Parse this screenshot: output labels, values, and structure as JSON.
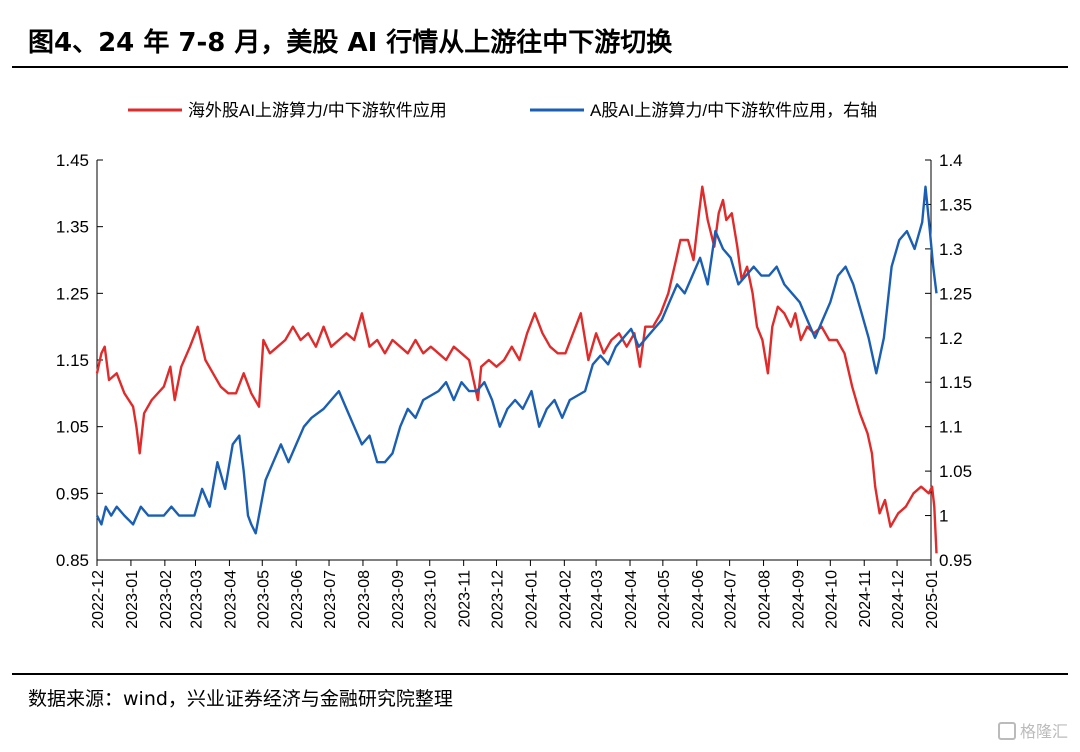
{
  "figure": {
    "title": "图4、24 年 7-8 月，美股 AI 行情从上游往中下游切换",
    "source": "数据来源：wind，兴业证券经济与金融研究院整理",
    "watermark": "格隆汇"
  },
  "chart_data": {
    "type": "line",
    "title": "",
    "xlabel": "",
    "ylabel": "",
    "legend_position": "top",
    "grid": false,
    "x_ticks": [
      "2022-12",
      "2023-01",
      "2023-02",
      "2023-03",
      "2023-04",
      "2023-05",
      "2023-06",
      "2023-07",
      "2023-08",
      "2023-09",
      "2023-10",
      "2023-11",
      "2023-12",
      "2024-01",
      "2024-02",
      "2024-03",
      "2024-04",
      "2024-05",
      "2024-06",
      "2024-07",
      "2024-08",
      "2024-09",
      "2024-10",
      "2024-11",
      "2024-12",
      "2025-01"
    ],
    "y_left": {
      "ticks": [
        "1.45",
        "1.35",
        "1.25",
        "1.15",
        "1.05",
        "0.95",
        "0.85"
      ],
      "min": 0.85,
      "max": 1.45
    },
    "y_right": {
      "ticks": [
        "1.4",
        "1.35",
        "1.3",
        "1.25",
        "1.2",
        "1.15",
        "1.1",
        "1.05",
        "1",
        "0.95"
      ],
      "min": 0.95,
      "max": 1.4
    },
    "series": [
      {
        "name": "海外股AI上游算力/中下游软件应用",
        "axis": "left",
        "color": "#e02b2b",
        "points": [
          [
            "2022-12-01",
            1.13
          ],
          [
            "2022-12-05",
            1.16
          ],
          [
            "2022-12-08",
            1.17
          ],
          [
            "2022-12-12",
            1.12
          ],
          [
            "2022-12-19",
            1.13
          ],
          [
            "2022-12-26",
            1.1
          ],
          [
            "2023-01-03",
            1.08
          ],
          [
            "2023-01-06",
            1.05
          ],
          [
            "2023-01-09",
            1.01
          ],
          [
            "2023-01-13",
            1.07
          ],
          [
            "2023-01-20",
            1.09
          ],
          [
            "2023-01-31",
            1.11
          ],
          [
            "2023-02-06",
            1.14
          ],
          [
            "2023-02-10",
            1.09
          ],
          [
            "2023-02-16",
            1.14
          ],
          [
            "2023-02-24",
            1.17
          ],
          [
            "2023-03-03",
            1.2
          ],
          [
            "2023-03-10",
            1.15
          ],
          [
            "2023-03-17",
            1.13
          ],
          [
            "2023-03-24",
            1.11
          ],
          [
            "2023-03-31",
            1.1
          ],
          [
            "2023-04-07",
            1.1
          ],
          [
            "2023-04-14",
            1.13
          ],
          [
            "2023-04-21",
            1.1
          ],
          [
            "2023-04-28",
            1.08
          ],
          [
            "2023-05-02",
            1.18
          ],
          [
            "2023-05-08",
            1.16
          ],
          [
            "2023-05-15",
            1.17
          ],
          [
            "2023-05-22",
            1.18
          ],
          [
            "2023-05-29",
            1.2
          ],
          [
            "2023-06-05",
            1.18
          ],
          [
            "2023-06-12",
            1.19
          ],
          [
            "2023-06-19",
            1.17
          ],
          [
            "2023-06-26",
            1.2
          ],
          [
            "2023-07-03",
            1.17
          ],
          [
            "2023-07-10",
            1.18
          ],
          [
            "2023-07-17",
            1.19
          ],
          [
            "2023-07-24",
            1.18
          ],
          [
            "2023-07-31",
            1.22
          ],
          [
            "2023-08-07",
            1.17
          ],
          [
            "2023-08-14",
            1.18
          ],
          [
            "2023-08-21",
            1.16
          ],
          [
            "2023-08-28",
            1.18
          ],
          [
            "2023-09-04",
            1.17
          ],
          [
            "2023-09-11",
            1.16
          ],
          [
            "2023-09-18",
            1.18
          ],
          [
            "2023-09-25",
            1.16
          ],
          [
            "2023-10-02",
            1.17
          ],
          [
            "2023-10-09",
            1.16
          ],
          [
            "2023-10-16",
            1.15
          ],
          [
            "2023-10-23",
            1.17
          ],
          [
            "2023-10-30",
            1.16
          ],
          [
            "2023-11-06",
            1.15
          ],
          [
            "2023-11-10",
            1.12
          ],
          [
            "2023-11-14",
            1.09
          ],
          [
            "2023-11-17",
            1.14
          ],
          [
            "2023-11-24",
            1.15
          ],
          [
            "2023-12-01",
            1.14
          ],
          [
            "2023-12-08",
            1.15
          ],
          [
            "2023-12-15",
            1.17
          ],
          [
            "2023-12-22",
            1.15
          ],
          [
            "2023-12-29",
            1.19
          ],
          [
            "2024-01-05",
            1.22
          ],
          [
            "2024-01-12",
            1.19
          ],
          [
            "2024-01-19",
            1.17
          ],
          [
            "2024-01-26",
            1.16
          ],
          [
            "2024-02-02",
            1.16
          ],
          [
            "2024-02-09",
            1.19
          ],
          [
            "2024-02-16",
            1.22
          ],
          [
            "2024-02-23",
            1.15
          ],
          [
            "2024-03-01",
            1.19
          ],
          [
            "2024-03-08",
            1.16
          ],
          [
            "2024-03-15",
            1.18
          ],
          [
            "2024-03-22",
            1.19
          ],
          [
            "2024-03-29",
            1.17
          ],
          [
            "2024-04-05",
            1.19
          ],
          [
            "2024-04-10",
            1.14
          ],
          [
            "2024-04-15",
            1.2
          ],
          [
            "2024-04-22",
            1.2
          ],
          [
            "2024-04-29",
            1.22
          ],
          [
            "2024-05-06",
            1.25
          ],
          [
            "2024-05-13",
            1.3
          ],
          [
            "2024-05-17",
            1.33
          ],
          [
            "2024-05-24",
            1.33
          ],
          [
            "2024-05-29",
            1.3
          ],
          [
            "2024-06-03",
            1.37
          ],
          [
            "2024-06-06",
            1.41
          ],
          [
            "2024-06-11",
            1.36
          ],
          [
            "2024-06-17",
            1.32
          ],
          [
            "2024-06-21",
            1.37
          ],
          [
            "2024-06-25",
            1.39
          ],
          [
            "2024-06-28",
            1.36
          ],
          [
            "2024-07-03",
            1.37
          ],
          [
            "2024-07-08",
            1.32
          ],
          [
            "2024-07-12",
            1.27
          ],
          [
            "2024-07-17",
            1.29
          ],
          [
            "2024-07-22",
            1.25
          ],
          [
            "2024-07-26",
            1.2
          ],
          [
            "2024-07-31",
            1.18
          ],
          [
            "2024-08-05",
            1.13
          ],
          [
            "2024-08-09",
            1.2
          ],
          [
            "2024-08-14",
            1.23
          ],
          [
            "2024-08-20",
            1.22
          ],
          [
            "2024-08-26",
            1.2
          ],
          [
            "2024-08-30",
            1.22
          ],
          [
            "2024-09-04",
            1.18
          ],
          [
            "2024-09-10",
            1.2
          ],
          [
            "2024-09-16",
            1.19
          ],
          [
            "2024-09-23",
            1.2
          ],
          [
            "2024-09-30",
            1.18
          ],
          [
            "2024-10-07",
            1.18
          ],
          [
            "2024-10-14",
            1.16
          ],
          [
            "2024-10-21",
            1.11
          ],
          [
            "2024-10-28",
            1.07
          ],
          [
            "2024-11-04",
            1.04
          ],
          [
            "2024-11-08",
            1.01
          ],
          [
            "2024-11-11",
            0.96
          ],
          [
            "2024-11-15",
            0.92
          ],
          [
            "2024-11-20",
            0.94
          ],
          [
            "2024-11-25",
            0.9
          ],
          [
            "2024-12-02",
            0.92
          ],
          [
            "2024-12-09",
            0.93
          ],
          [
            "2024-12-16",
            0.95
          ],
          [
            "2024-12-23",
            0.96
          ],
          [
            "2024-12-30",
            0.95
          ],
          [
            "2025-01-02",
            0.96
          ],
          [
            "2025-01-04",
            0.93
          ],
          [
            "2025-01-06",
            0.86
          ]
        ]
      },
      {
        "name": "A股AI上游算力/中下游软件应用，右轴",
        "axis": "right",
        "color": "#1a5fb4",
        "points": [
          [
            "2022-12-01",
            1.0
          ],
          [
            "2022-12-05",
            0.99
          ],
          [
            "2022-12-09",
            1.01
          ],
          [
            "2022-12-14",
            1.0
          ],
          [
            "2022-12-19",
            1.01
          ],
          [
            "2022-12-26",
            1.0
          ],
          [
            "2023-01-03",
            0.99
          ],
          [
            "2023-01-10",
            1.01
          ],
          [
            "2023-01-17",
            1.0
          ],
          [
            "2023-01-31",
            1.0
          ],
          [
            "2023-02-07",
            1.01
          ],
          [
            "2023-02-14",
            1.0
          ],
          [
            "2023-02-21",
            1.0
          ],
          [
            "2023-02-28",
            1.0
          ],
          [
            "2023-03-07",
            1.03
          ],
          [
            "2023-03-14",
            1.01
          ],
          [
            "2023-03-21",
            1.06
          ],
          [
            "2023-03-28",
            1.03
          ],
          [
            "2023-04-04",
            1.08
          ],
          [
            "2023-04-10",
            1.09
          ],
          [
            "2023-04-14",
            1.05
          ],
          [
            "2023-04-18",
            1.0
          ],
          [
            "2023-04-21",
            0.99
          ],
          [
            "2023-04-25",
            0.98
          ],
          [
            "2023-05-04",
            1.04
          ],
          [
            "2023-05-11",
            1.06
          ],
          [
            "2023-05-18",
            1.08
          ],
          [
            "2023-05-25",
            1.06
          ],
          [
            "2023-06-01",
            1.08
          ],
          [
            "2023-06-08",
            1.1
          ],
          [
            "2023-06-15",
            1.11
          ],
          [
            "2023-06-26",
            1.12
          ],
          [
            "2023-07-03",
            1.13
          ],
          [
            "2023-07-10",
            1.14
          ],
          [
            "2023-07-17",
            1.12
          ],
          [
            "2023-07-24",
            1.1
          ],
          [
            "2023-07-31",
            1.08
          ],
          [
            "2023-08-07",
            1.09
          ],
          [
            "2023-08-14",
            1.06
          ],
          [
            "2023-08-21",
            1.06
          ],
          [
            "2023-08-28",
            1.07
          ],
          [
            "2023-09-04",
            1.1
          ],
          [
            "2023-09-11",
            1.12
          ],
          [
            "2023-09-18",
            1.11
          ],
          [
            "2023-09-25",
            1.13
          ],
          [
            "2023-10-09",
            1.14
          ],
          [
            "2023-10-16",
            1.15
          ],
          [
            "2023-10-23",
            1.13
          ],
          [
            "2023-10-30",
            1.15
          ],
          [
            "2023-11-06",
            1.14
          ],
          [
            "2023-11-13",
            1.14
          ],
          [
            "2023-11-20",
            1.15
          ],
          [
            "2023-11-27",
            1.13
          ],
          [
            "2023-12-04",
            1.1
          ],
          [
            "2023-12-11",
            1.12
          ],
          [
            "2023-12-18",
            1.13
          ],
          [
            "2023-12-25",
            1.12
          ],
          [
            "2024-01-02",
            1.14
          ],
          [
            "2024-01-09",
            1.1
          ],
          [
            "2024-01-16",
            1.12
          ],
          [
            "2024-01-23",
            1.13
          ],
          [
            "2024-01-30",
            1.11
          ],
          [
            "2024-02-06",
            1.13
          ],
          [
            "2024-02-20",
            1.14
          ],
          [
            "2024-02-27",
            1.17
          ],
          [
            "2024-03-05",
            1.18
          ],
          [
            "2024-03-12",
            1.17
          ],
          [
            "2024-03-19",
            1.19
          ],
          [
            "2024-03-26",
            1.2
          ],
          [
            "2024-04-02",
            1.21
          ],
          [
            "2024-04-09",
            1.19
          ],
          [
            "2024-04-16",
            1.2
          ],
          [
            "2024-04-23",
            1.21
          ],
          [
            "2024-04-30",
            1.22
          ],
          [
            "2024-05-07",
            1.24
          ],
          [
            "2024-05-14",
            1.26
          ],
          [
            "2024-05-21",
            1.25
          ],
          [
            "2024-05-28",
            1.27
          ],
          [
            "2024-06-04",
            1.29
          ],
          [
            "2024-06-11",
            1.26
          ],
          [
            "2024-06-18",
            1.32
          ],
          [
            "2024-06-25",
            1.3
          ],
          [
            "2024-07-02",
            1.29
          ],
          [
            "2024-07-09",
            1.26
          ],
          [
            "2024-07-16",
            1.27
          ],
          [
            "2024-07-23",
            1.28
          ],
          [
            "2024-07-30",
            1.27
          ],
          [
            "2024-08-06",
            1.27
          ],
          [
            "2024-08-13",
            1.28
          ],
          [
            "2024-08-20",
            1.26
          ],
          [
            "2024-08-27",
            1.25
          ],
          [
            "2024-09-03",
            1.24
          ],
          [
            "2024-09-10",
            1.22
          ],
          [
            "2024-09-17",
            1.2
          ],
          [
            "2024-09-24",
            1.22
          ],
          [
            "2024-10-01",
            1.24
          ],
          [
            "2024-10-08",
            1.27
          ],
          [
            "2024-10-15",
            1.28
          ],
          [
            "2024-10-22",
            1.26
          ],
          [
            "2024-10-29",
            1.23
          ],
          [
            "2024-11-05",
            1.2
          ],
          [
            "2024-11-12",
            1.16
          ],
          [
            "2024-11-19",
            1.2
          ],
          [
            "2024-11-26",
            1.28
          ],
          [
            "2024-12-03",
            1.31
          ],
          [
            "2024-12-10",
            1.32
          ],
          [
            "2024-12-17",
            1.3
          ],
          [
            "2024-12-24",
            1.33
          ],
          [
            "2024-12-27",
            1.37
          ],
          [
            "2024-12-31",
            1.32
          ],
          [
            "2025-01-03",
            1.28
          ],
          [
            "2025-01-06",
            1.25
          ]
        ]
      }
    ]
  }
}
